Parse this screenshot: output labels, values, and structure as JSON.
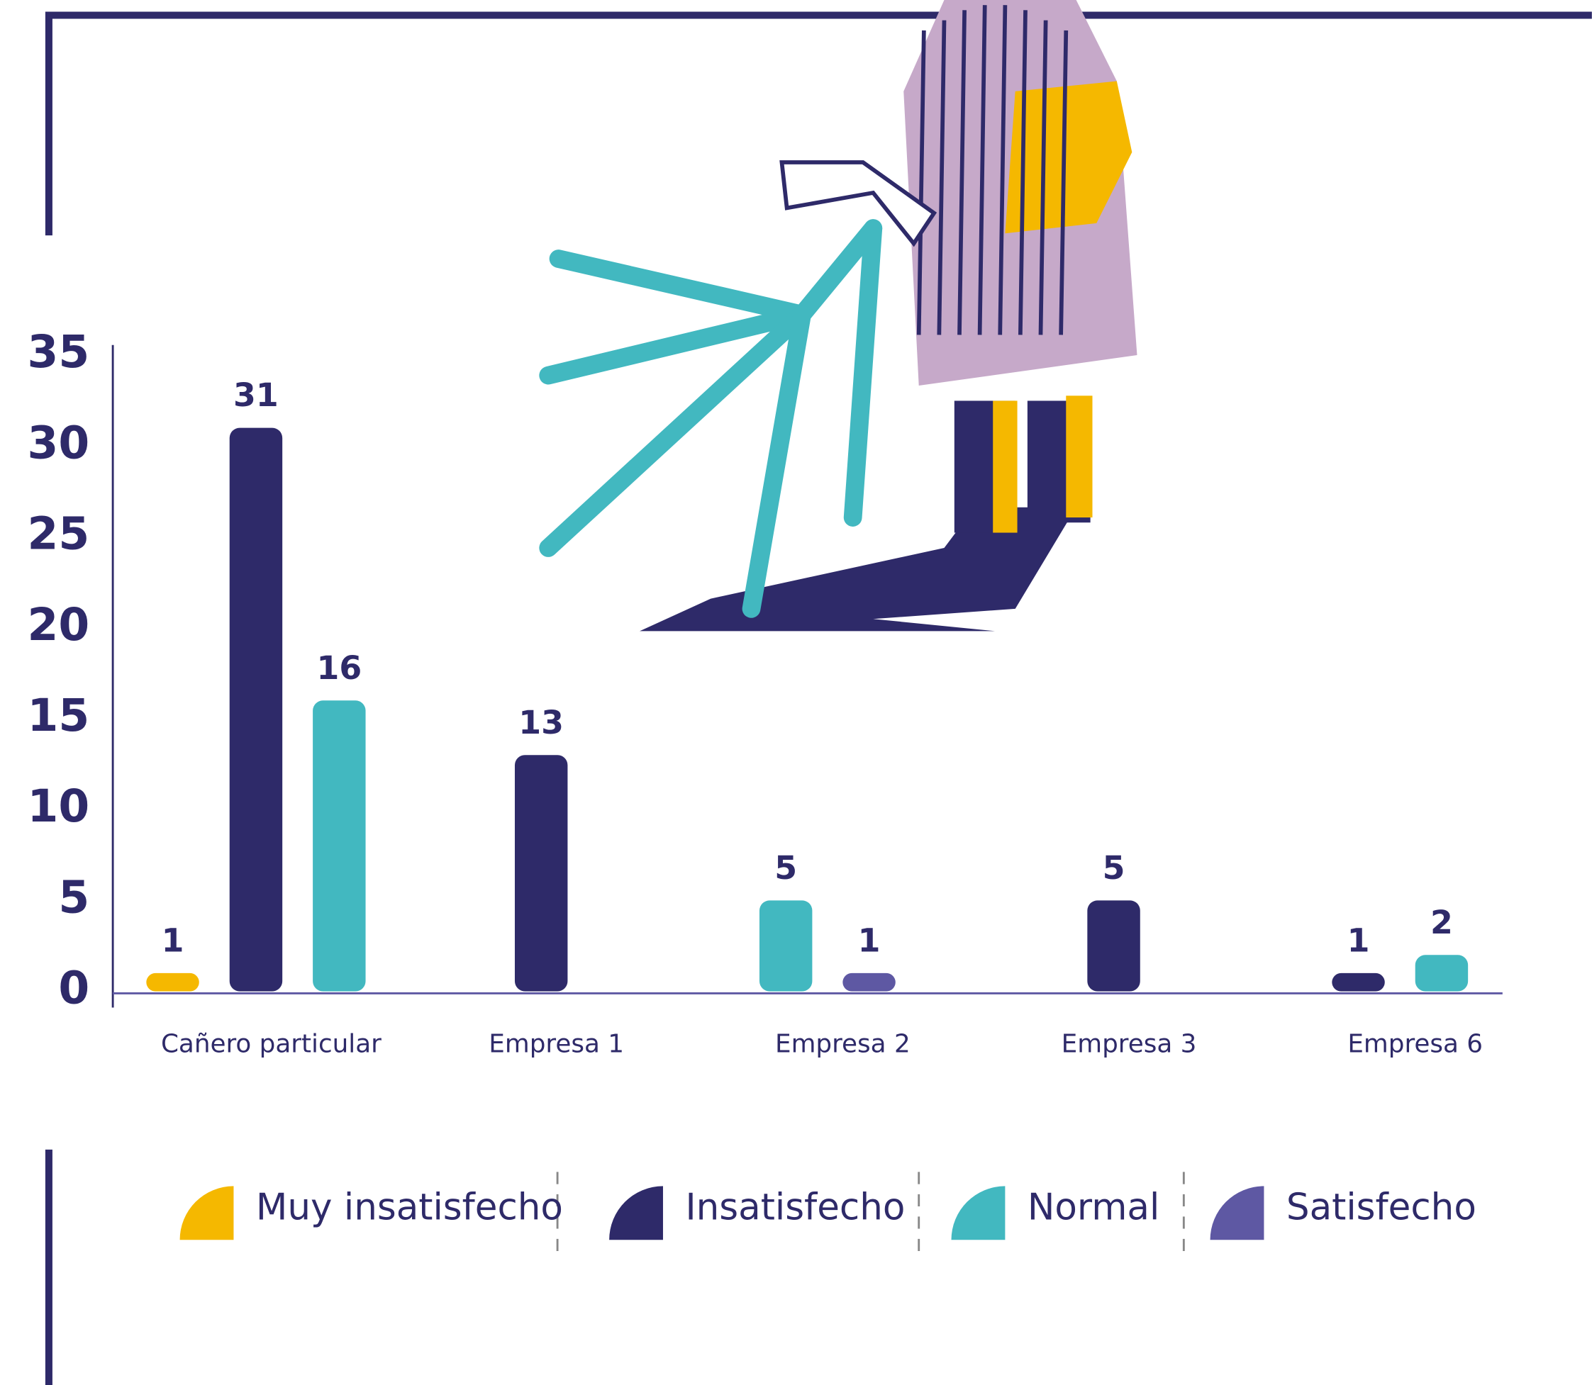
{
  "chart_data": {
    "type": "bar",
    "categories": [
      "Cañero particular",
      "Empresa 1",
      "Empresa 2",
      "Empresa 3",
      "Empresa 6"
    ],
    "series": [
      {
        "name": "Muy insatisfecho",
        "color": "#f5b800",
        "values": [
          1,
          null,
          null,
          null,
          null
        ]
      },
      {
        "name": "Insatisfecho",
        "color": "#2e2a69",
        "values": [
          31,
          13,
          null,
          5,
          1
        ]
      },
      {
        "name": "Normal",
        "color": "#42b8c0",
        "values": [
          16,
          null,
          5,
          null,
          2
        ]
      },
      {
        "name": "Satisfecho",
        "color": "#5e58a3",
        "values": [
          null,
          null,
          1,
          null,
          null
        ]
      }
    ],
    "ylim": [
      0,
      35
    ],
    "yticks": [
      0,
      5,
      10,
      15,
      20,
      25,
      30,
      35
    ],
    "grid": false,
    "legend": "bottom"
  }
}
